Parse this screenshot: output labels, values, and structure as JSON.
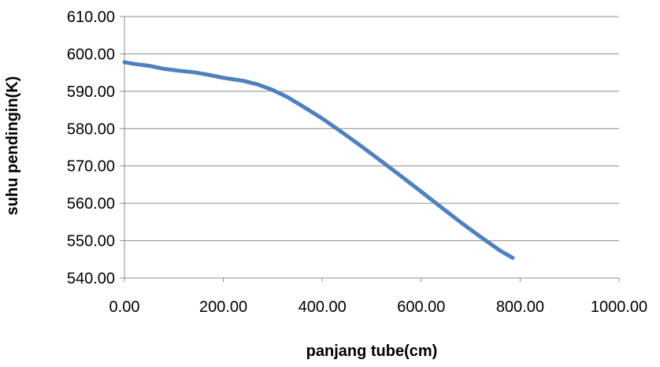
{
  "chart_data": {
    "type": "line",
    "title": "",
    "xlabel": "panjang tube(cm)",
    "ylabel": "suhu pendingin(K)",
    "xlim": [
      0,
      1000
    ],
    "ylim": [
      540,
      610
    ],
    "x_ticks": [
      "0.00",
      "200.00",
      "400.00",
      "600.00",
      "800.00",
      "1000.00"
    ],
    "y_ticks": [
      "610.00",
      "600.00",
      "590.00",
      "580.00",
      "570.00",
      "560.00",
      "550.00",
      "540.00"
    ],
    "grid": "horizontal",
    "legend": "none",
    "series": [
      {
        "color": "#4f81bd",
        "x": [
          0,
          20,
          50,
          80,
          110,
          140,
          170,
          200,
          240,
          270,
          300,
          330,
          360,
          400,
          440,
          480,
          520,
          560,
          600,
          640,
          680,
          720,
          760,
          785
        ],
        "y": [
          597.8,
          597.3,
          596.8,
          596.0,
          595.5,
          595.1,
          594.4,
          593.6,
          592.8,
          591.8,
          590.3,
          588.4,
          586.0,
          582.7,
          579.0,
          575.2,
          571.2,
          567.2,
          563.1,
          559.0,
          554.9,
          551.0,
          547.3,
          545.4
        ]
      }
    ]
  }
}
